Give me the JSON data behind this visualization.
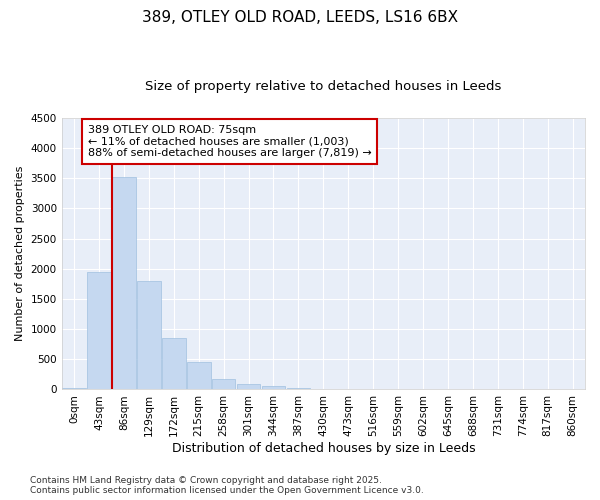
{
  "title1": "389, OTLEY OLD ROAD, LEEDS, LS16 6BX",
  "title2": "Size of property relative to detached houses in Leeds",
  "xlabel": "Distribution of detached houses by size in Leeds",
  "ylabel": "Number of detached properties",
  "bar_labels": [
    "0sqm",
    "43sqm",
    "86sqm",
    "129sqm",
    "172sqm",
    "215sqm",
    "258sqm",
    "301sqm",
    "344sqm",
    "387sqm",
    "430sqm",
    "473sqm",
    "516sqm",
    "559sqm",
    "602sqm",
    "645sqm",
    "688sqm",
    "731sqm",
    "774sqm",
    "817sqm",
    "860sqm"
  ],
  "bar_values": [
    30,
    1950,
    3520,
    1800,
    860,
    450,
    175,
    90,
    50,
    20,
    5,
    2,
    1,
    0,
    0,
    0,
    0,
    0,
    0,
    0,
    0
  ],
  "bar_color": "#c5d8f0",
  "bar_edge_color": "#a0c0e0",
  "vline_color": "#cc0000",
  "vline_pos": 1.5,
  "annotation_text": "389 OTLEY OLD ROAD: 75sqm\n← 11% of detached houses are smaller (1,003)\n88% of semi-detached houses are larger (7,819) →",
  "annotation_box_facecolor": "#ffffff",
  "annotation_box_edgecolor": "#cc0000",
  "ylim_max": 4500,
  "yticks": [
    0,
    500,
    1000,
    1500,
    2000,
    2500,
    3000,
    3500,
    4000,
    4500
  ],
  "fig_bg": "#ffffff",
  "axes_bg": "#e8eef8",
  "grid_color": "#ffffff",
  "footnote": "Contains HM Land Registry data © Crown copyright and database right 2025.\nContains public sector information licensed under the Open Government Licence v3.0.",
  "title1_fs": 11,
  "title2_fs": 9.5,
  "xlabel_fs": 9,
  "ylabel_fs": 8,
  "tick_fs": 7.5,
  "annot_fs": 8,
  "footnote_fs": 6.5
}
